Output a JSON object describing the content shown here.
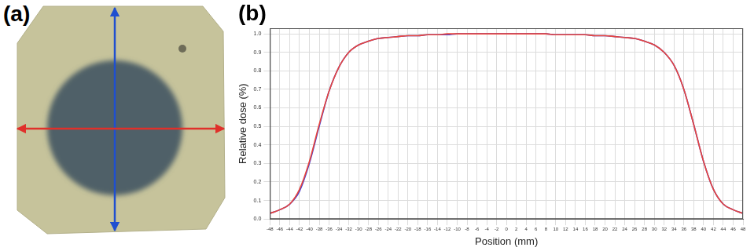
{
  "panel_labels": [
    "(a)",
    "(b)"
  ],
  "chart_data": {
    "type": "line",
    "x_label": "Position (mm)",
    "y_label": "Relative dose (%)",
    "x": [
      -48,
      -46,
      -44,
      -42,
      -40,
      -38,
      -36,
      -34,
      -32,
      -30,
      -28,
      -26,
      -24,
      -22,
      -20,
      -18,
      -16,
      -14,
      -12,
      -10,
      -8,
      -6,
      -4,
      -2,
      0,
      2,
      4,
      6,
      8,
      10,
      12,
      14,
      16,
      18,
      20,
      22,
      24,
      26,
      28,
      30,
      32,
      34,
      36,
      38,
      40,
      42,
      44,
      46,
      48
    ],
    "series": [
      {
        "color": "#e8453c",
        "values": [
          0.03,
          0.05,
          0.08,
          0.16,
          0.31,
          0.51,
          0.69,
          0.82,
          0.9,
          0.94,
          0.96,
          0.975,
          0.98,
          0.985,
          0.99,
          0.99,
          0.995,
          0.995,
          1.0,
          1.0,
          1.0,
          1.0,
          1.0,
          1.0,
          1.0,
          1.0,
          1.0,
          1.0,
          1.0,
          0.995,
          0.995,
          0.995,
          0.995,
          0.99,
          0.99,
          0.985,
          0.98,
          0.975,
          0.96,
          0.94,
          0.9,
          0.83,
          0.7,
          0.51,
          0.31,
          0.16,
          0.08,
          0.05,
          0.03
        ]
      },
      {
        "color": "#3f3fd6",
        "values": [
          0.03,
          0.05,
          0.08,
          0.15,
          0.3,
          0.5,
          0.69,
          0.82,
          0.9,
          0.94,
          0.96,
          0.975,
          0.98,
          0.985,
          0.99,
          0.99,
          0.995,
          0.995,
          0.995,
          1.0,
          1.0,
          1.0,
          1.0,
          1.0,
          1.0,
          1.0,
          1.0,
          1.0,
          1.0,
          0.995,
          0.995,
          0.995,
          0.995,
          0.99,
          0.99,
          0.985,
          0.98,
          0.975,
          0.96,
          0.94,
          0.9,
          0.83,
          0.7,
          0.51,
          0.31,
          0.16,
          0.08,
          0.05,
          0.03
        ]
      }
    ],
    "xlim": [
      -48,
      48
    ],
    "xticks": [
      -48,
      -46,
      -44,
      -42,
      -40,
      -38,
      -36,
      -34,
      -32,
      -30,
      -28,
      -26,
      -24,
      -22,
      -20,
      -18,
      -16,
      -14,
      -12,
      -10,
      -8,
      -6,
      -4,
      -2,
      0,
      2,
      4,
      6,
      8,
      10,
      12,
      14,
      16,
      18,
      20,
      22,
      24,
      26,
      28,
      30,
      32,
      34,
      36,
      38,
      40,
      42,
      44,
      46,
      48
    ],
    "ylim": [
      0,
      1.03
    ],
    "yticks": [
      {
        "value": 0,
        "label": "0.0"
      },
      0.1,
      0.2,
      0.3,
      0.4,
      0.5,
      0.6,
      0.7,
      0.8,
      0.9,
      {
        "value": 1,
        "label": "1.0"
      }
    ],
    "grid": true
  }
}
